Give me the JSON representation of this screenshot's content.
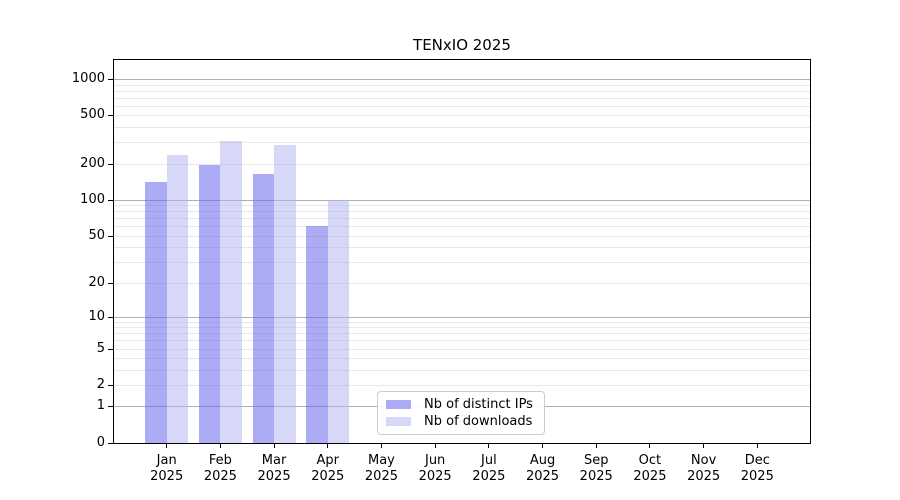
{
  "chart_data": {
    "type": "bar",
    "title": "TENxIO 2025",
    "categories": [
      "Jan",
      "Feb",
      "Mar",
      "Apr",
      "May",
      "Jun",
      "Jul",
      "Aug",
      "Sep",
      "Oct",
      "Nov",
      "Dec"
    ],
    "category_year": "2025",
    "series": [
      {
        "name": "Nb of distinct IPs",
        "color": "#6666ee",
        "alpha": 0.55,
        "values": [
          140,
          195,
          165,
          60,
          null,
          null,
          null,
          null,
          null,
          null,
          null,
          null
        ]
      },
      {
        "name": "Nb of downloads",
        "color": "#b0b0f0",
        "alpha": 0.5,
        "values": [
          235,
          310,
          285,
          100,
          null,
          null,
          null,
          null,
          null,
          null,
          null,
          null
        ]
      }
    ],
    "xlabel": "",
    "ylabel": "",
    "yscale": "log1p",
    "ylim": [
      0,
      1480
    ],
    "yticks": [
      1000,
      500,
      200,
      100,
      50,
      20,
      10,
      5,
      2,
      1,
      0
    ],
    "grid": "horizontal major and minor log-decade gridlines",
    "legend_position": "lower center inside plot",
    "colors": {
      "grid_major": "#b0b0b0",
      "grid_minor": "#e8e8e8",
      "axis": "#000000",
      "text": "#000000",
      "background": "#ffffff"
    }
  }
}
